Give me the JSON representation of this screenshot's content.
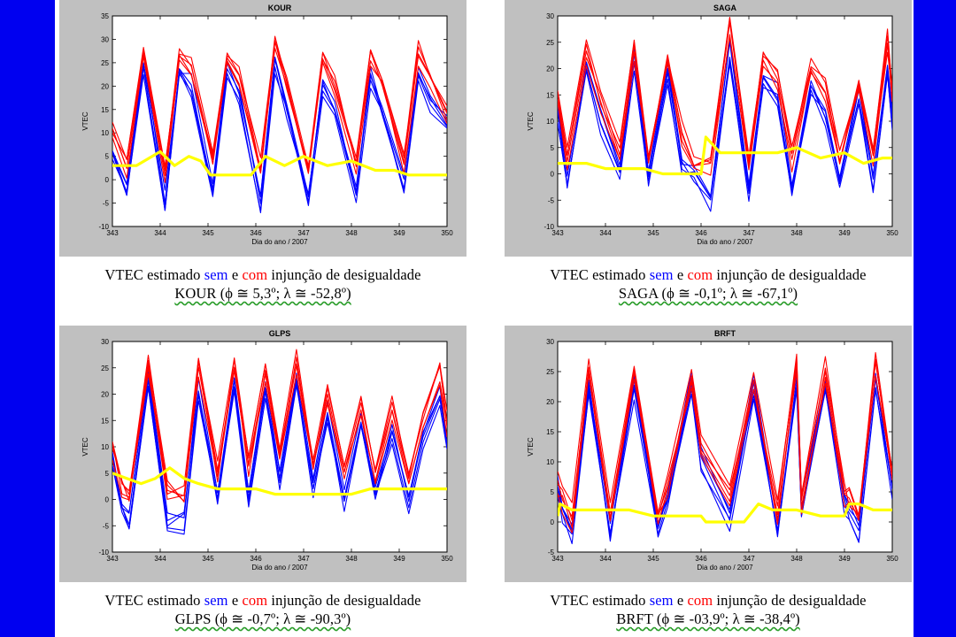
{
  "colors": {
    "background": "#0000f0",
    "blue_series": "#0000ff",
    "red_series": "#ff0000",
    "yellow_series": "#ffff00",
    "plot_frame": "#c0c0c0"
  },
  "captions": {
    "prefix": "VTEC estimado ",
    "sem": "sem",
    "mid": " e ",
    "com": "com",
    "suffix": " injunção de desigualdade"
  },
  "chart_data": [
    {
      "type": "line",
      "title": "KOUR",
      "xlabel": "Dia do ano / 2007",
      "ylabel": "VTEC",
      "xlim": [
        343,
        350
      ],
      "ylim": [
        -10,
        35
      ],
      "xticks": [
        "343",
        "344",
        "345",
        "346",
        "347",
        "348",
        "349",
        "350"
      ],
      "yticks": [
        "-10",
        "-5",
        "0",
        "5",
        "10",
        "15",
        "20",
        "25",
        "30",
        "35"
      ],
      "station_label": "KOUR (ϕ ≅ 5,3º; λ ≅ -52,8º)",
      "series": [
        {
          "color": "blue",
          "x": [
            343.0,
            343.3,
            343.65,
            344.1,
            344.4,
            344.65,
            345.1,
            345.4,
            345.65,
            346.1,
            346.4,
            346.65,
            347.1,
            347.4,
            347.65,
            348.1,
            348.4,
            348.65,
            349.1,
            349.4,
            349.65,
            350.0
          ],
          "values": [
            6,
            -3,
            25,
            -5,
            23,
            20,
            -2,
            23,
            18,
            -5,
            25,
            15,
            -4,
            20,
            15,
            -3,
            22,
            15,
            -1,
            23,
            17,
            11
          ]
        },
        {
          "color": "red",
          "x": [
            343.0,
            343.3,
            343.65,
            344.1,
            344.4,
            344.65,
            345.1,
            345.4,
            345.65,
            346.1,
            346.4,
            346.65,
            347.1,
            347.4,
            347.65,
            348.1,
            348.4,
            348.65,
            349.1,
            349.4,
            349.65,
            350.0
          ],
          "values": [
            10,
            3,
            28,
            2,
            27,
            24,
            4,
            26,
            22,
            2,
            30,
            20,
            2,
            26,
            20,
            3,
            27,
            21,
            4,
            27,
            22,
            14
          ]
        },
        {
          "color": "yellow",
          "x": [
            343.0,
            343.5,
            344.0,
            344.3,
            344.6,
            344.85,
            345.05,
            345.6,
            345.9,
            346.2,
            346.6,
            347.0,
            347.5,
            348.0,
            348.5,
            348.9,
            349.2,
            349.6,
            350.0
          ],
          "values": [
            3,
            3,
            6,
            3,
            5,
            4,
            1,
            1,
            1,
            5,
            3,
            5,
            3,
            4,
            2,
            2,
            1,
            1,
            1
          ]
        }
      ]
    },
    {
      "type": "line",
      "title": "SAGA",
      "xlabel": "Dia do ano / 2007",
      "ylabel": "VTEC",
      "xlim": [
        343,
        350
      ],
      "ylim": [
        -10,
        30
      ],
      "xticks": [
        "343",
        "344",
        "345",
        "346",
        "347",
        "348",
        "349",
        "350"
      ],
      "yticks": [
        "-10",
        "-5",
        "0",
        "5",
        "10",
        "15",
        "20",
        "25",
        "30"
      ],
      "station_label": "SAGA (ϕ ≅ -0,1º; λ ≅ -67,1º)",
      "series": [
        {
          "color": "blue",
          "x": [
            343.0,
            343.2,
            343.6,
            343.9,
            344.3,
            344.6,
            344.9,
            345.3,
            345.6,
            345.85,
            346.2,
            346.6,
            347.0,
            347.3,
            347.6,
            347.9,
            348.3,
            348.6,
            348.9,
            349.3,
            349.6,
            349.9,
            350.0
          ],
          "values": [
            12,
            -2,
            20,
            10,
            1,
            22,
            -1,
            19,
            2,
            0,
            -5,
            23,
            -3,
            18,
            15,
            -3,
            16,
            11,
            -2,
            15,
            -1,
            20,
            10
          ]
        },
        {
          "color": "red",
          "x": [
            343.0,
            343.2,
            343.6,
            343.9,
            344.3,
            344.6,
            344.9,
            345.3,
            345.6,
            345.85,
            346.2,
            346.6,
            347.0,
            347.3,
            347.6,
            347.9,
            348.3,
            348.6,
            348.9,
            349.3,
            349.6,
            349.9,
            350.0
          ],
          "values": [
            14,
            3,
            23,
            14,
            4,
            24,
            3,
            22,
            8,
            2,
            2,
            28,
            2,
            22,
            18,
            3,
            20,
            16,
            3,
            17,
            3,
            25,
            15
          ]
        },
        {
          "color": "yellow",
          "x": [
            343.0,
            343.3,
            343.6,
            344.0,
            344.4,
            344.8,
            345.2,
            345.6,
            346.0,
            346.1,
            346.4,
            346.8,
            347.2,
            347.6,
            348.0,
            348.5,
            349.0,
            349.4,
            349.8,
            350.0
          ],
          "values": [
            2,
            2,
            2,
            1,
            1,
            1,
            0,
            0,
            0,
            7,
            4,
            4,
            4,
            4,
            5,
            3,
            4,
            2,
            3,
            3
          ]
        }
      ]
    },
    {
      "type": "line",
      "title": "GLPS",
      "xlabel": "Dia do ano / 2007",
      "ylabel": "VTEC",
      "xlim": [
        343,
        350
      ],
      "ylim": [
        -10,
        30
      ],
      "xticks": [
        "343",
        "344",
        "345",
        "346",
        "347",
        "348",
        "349",
        "350"
      ],
      "yticks": [
        "-10",
        "-5",
        "0",
        "5",
        "10",
        "15",
        "20",
        "25",
        "30"
      ],
      "station_label": "GLPS (ϕ ≅ -0,7º; λ ≅ -90,3º)",
      "series": [
        {
          "color": "blue",
          "x": [
            343.0,
            343.2,
            343.35,
            343.75,
            344.15,
            344.5,
            344.8,
            345.2,
            345.55,
            345.85,
            346.2,
            346.5,
            346.85,
            347.2,
            347.5,
            347.85,
            348.2,
            348.5,
            348.85,
            349.2,
            349.5,
            349.85,
            350.0
          ],
          "values": [
            8,
            -2,
            -4,
            22,
            -5,
            -4,
            21,
            0,
            22,
            1,
            21,
            4,
            22,
            3,
            16,
            0,
            15,
            1,
            13,
            -1,
            12,
            20,
            10
          ]
        },
        {
          "color": "red",
          "x": [
            343.0,
            343.2,
            343.35,
            343.75,
            344.15,
            344.5,
            344.8,
            345.2,
            345.55,
            345.85,
            346.2,
            346.5,
            346.85,
            347.2,
            347.5,
            347.85,
            348.2,
            348.5,
            348.85,
            349.2,
            349.5,
            349.85,
            350.0
          ],
          "values": [
            10,
            2,
            1,
            25,
            2,
            1,
            26,
            5,
            26,
            6,
            25,
            8,
            26,
            7,
            20,
            5,
            18,
            5,
            17,
            3,
            15,
            24,
            14
          ]
        },
        {
          "color": "yellow",
          "x": [
            343.0,
            343.3,
            343.6,
            343.9,
            344.2,
            344.5,
            344.8,
            345.2,
            345.6,
            346.0,
            346.4,
            346.8,
            347.2,
            347.6,
            348.0,
            348.4,
            348.8,
            349.2,
            349.6,
            350.0
          ],
          "values": [
            5,
            4,
            3,
            4,
            6,
            4,
            3,
            2,
            2,
            2,
            1,
            1,
            1,
            1,
            1,
            2,
            2,
            2,
            2,
            2
          ]
        }
      ]
    },
    {
      "type": "line",
      "title": "BRFT",
      "xlabel": "Dia do ano / 2007",
      "ylabel": "VTEC",
      "xlim": [
        343,
        350
      ],
      "ylim": [
        -5,
        30
      ],
      "xticks": [
        "343",
        "344",
        "345",
        "346",
        "347",
        "348",
        "349",
        "350"
      ],
      "yticks": [
        "-5",
        "0",
        "5",
        "10",
        "15",
        "20",
        "25",
        "30"
      ],
      "station_label": "BRFT (ϕ ≅ -03,9º; λ ≅ -38,4º)",
      "series": [
        {
          "color": "blue",
          "x": [
            343.0,
            343.1,
            343.3,
            343.65,
            344.1,
            344.6,
            345.1,
            345.3,
            345.8,
            346.0,
            346.6,
            347.1,
            347.6,
            348.0,
            348.1,
            348.6,
            349.0,
            349.1,
            349.3,
            349.65,
            350.0
          ],
          "values": [
            5,
            2,
            -1,
            23,
            -2,
            23,
            -1,
            4,
            23,
            10,
            0,
            22,
            -1,
            24,
            2,
            23,
            3,
            2,
            -2,
            24,
            6
          ]
        },
        {
          "color": "red",
          "x": [
            343.0,
            343.1,
            343.3,
            343.65,
            344.1,
            344.6,
            345.1,
            345.3,
            345.8,
            346.0,
            346.6,
            347.1,
            347.6,
            348.0,
            348.1,
            348.6,
            349.0,
            349.1,
            349.3,
            349.65,
            350.0
          ],
          "values": [
            6,
            4,
            1,
            25,
            1,
            25,
            1,
            6,
            24,
            12,
            4,
            23,
            1,
            26,
            4,
            25,
            5,
            4,
            1,
            26,
            8
          ]
        },
        {
          "color": "yellow",
          "x": [
            343.0,
            343.05,
            343.3,
            343.6,
            344.0,
            344.5,
            345.0,
            345.5,
            346.0,
            346.1,
            346.5,
            346.9,
            347.2,
            347.5,
            348.0,
            348.5,
            349.0,
            349.1,
            349.3,
            349.6,
            350.0
          ],
          "values": [
            1,
            3,
            2,
            2,
            2,
            2,
            1,
            1,
            1,
            0,
            0,
            0,
            3,
            2,
            2,
            1,
            1,
            3,
            3,
            2,
            2
          ]
        }
      ]
    }
  ]
}
